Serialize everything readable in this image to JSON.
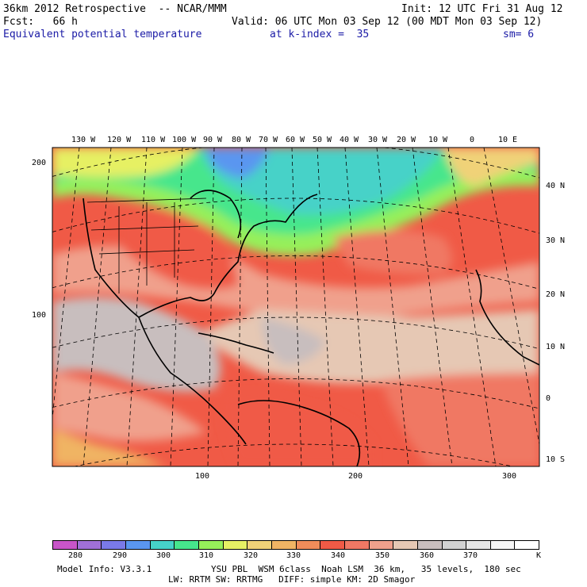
{
  "header": {
    "line1_left": "36km 2012 Retrospective  -- NCAR/MMM",
    "line1_right": "Init: 12 UTC Fri 31 Aug 12",
    "line2_left": "Fcst:   66 h",
    "line2_right": "Valid: 06 UTC Mon 03 Sep 12 (00 MDT Mon 03 Sep 12)",
    "line3_field": "Equivalent potential temperature",
    "line3_kindex": "at k-index =  35",
    "line3_sm": "sm= 6"
  },
  "map": {
    "lon_labels": [
      "130 W",
      "120 W",
      "110 W",
      "100 W",
      "90 W",
      "80 W",
      "70 W",
      "60 W",
      "50 W",
      "40 W",
      "30 W",
      "20 W",
      "10 W",
      "0",
      "10 E"
    ],
    "lat_labels": [
      "40 N",
      "30 N",
      "20 N",
      "10 N",
      "0",
      "10 S"
    ],
    "y_grid_labels": [
      "200",
      "100"
    ],
    "x_grid_labels": [
      "100",
      "200",
      "300"
    ]
  },
  "colorbar": {
    "colors": [
      "#c855c8",
      "#a070d8",
      "#7a7ae8",
      "#5a96f0",
      "#46d2c8",
      "#46e68c",
      "#96f05a",
      "#e6f064",
      "#f0d278",
      "#f0b464",
      "#f08c5a",
      "#f05a46",
      "#f07864",
      "#f0a08c",
      "#e6c8b4",
      "#c8bebe",
      "#d2d2d2",
      "#e6e6e6",
      "#f5f5f5",
      "#ffffff"
    ],
    "labels": [
      "280",
      "290",
      "300",
      "310",
      "320",
      "330",
      "340",
      "350",
      "360",
      "370",
      "K"
    ]
  },
  "footer": {
    "line1_left": "Model Info: V3.3.1",
    "line1_right": "YSU PBL  WSM 6class  Noah LSM  36 km,   35 levels,  180 sec",
    "line2": "LW: RRTM SW: RRTMG   DIFF: simple KM: 2D Smagor"
  }
}
